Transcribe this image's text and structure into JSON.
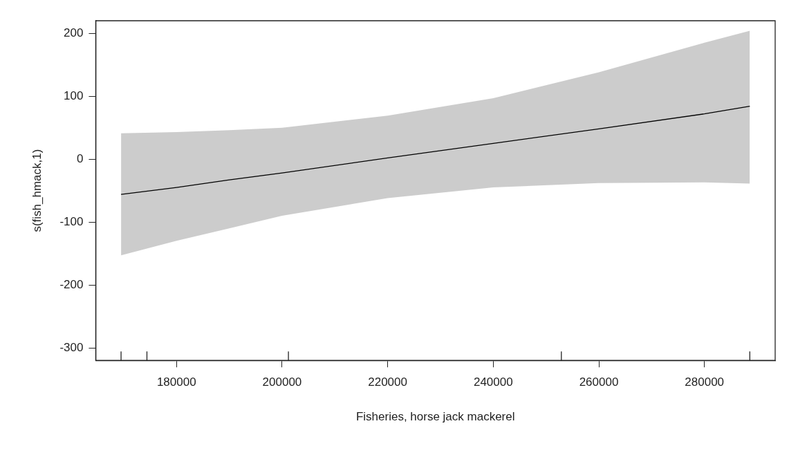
{
  "chart_data": {
    "type": "line",
    "xlabel": "Fisheries, horse jack mackerel",
    "ylabel": "s(fish_hmack,1)",
    "series": [
      {
        "type": "line",
        "color": "#000000",
        "x": [
          169500,
          180000,
          190000,
          200000,
          220000,
          240000,
          260000,
          280000,
          288600
        ],
        "values": [
          -56,
          -45,
          -33,
          -22,
          2,
          25,
          48,
          72,
          84
        ],
        "lower": [
          -153,
          -130,
          -110,
          -90,
          -62,
          -45,
          -38,
          -37,
          -39
        ],
        "upper": [
          41,
          43,
          46,
          50,
          69,
          97,
          138,
          185,
          204
        ]
      }
    ],
    "xlim": [
      164700,
      293400
    ],
    "ylim": [
      -320,
      220
    ],
    "xticks": [
      {
        "value": 169500,
        "label": null
      },
      {
        "value": 174400,
        "label": null
      },
      180000,
      200000,
      {
        "value": 201200,
        "label": null
      },
      220000,
      240000,
      {
        "value": 252900,
        "label": null
      },
      260000,
      280000,
      {
        "value": 288600,
        "label": null
      }
    ],
    "yticks": [
      -300,
      -200,
      -100,
      0,
      100,
      200
    ],
    "grid": false,
    "legend": false,
    "marker": "none"
  }
}
